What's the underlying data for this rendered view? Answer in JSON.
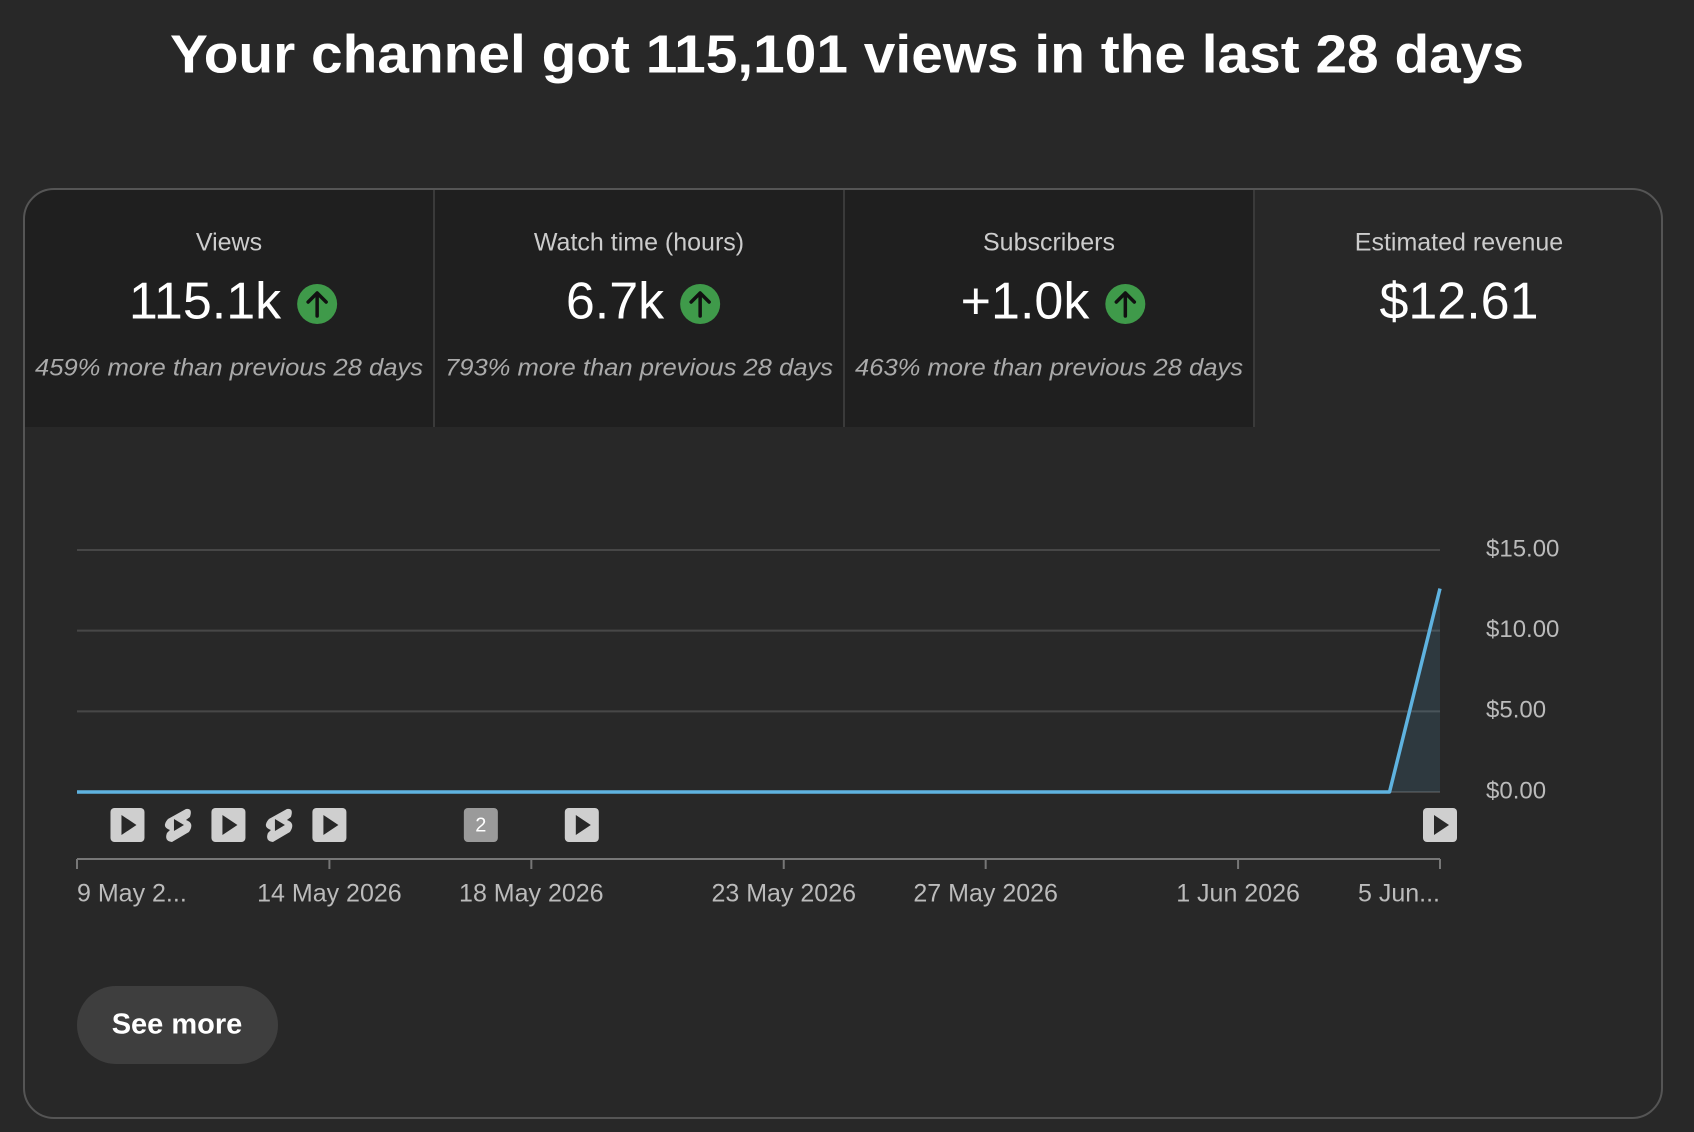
{
  "header": {
    "title": "Your channel got 115,101 views in the last 28 days"
  },
  "metrics": [
    {
      "label": "Views",
      "value": "115.1k",
      "change": "459% more than previous 28 days"
    },
    {
      "label": "Watch time (hours)",
      "value": "6.7k",
      "change": "793% more than previous 28 days"
    },
    {
      "label": "Subscribers",
      "value": "+1.0k",
      "change": "463% more than previous 28 days"
    },
    {
      "label": "Estimated revenue",
      "value": "$12.61"
    }
  ],
  "chart_data": {
    "type": "line",
    "categories": [
      "9 May 2...",
      null,
      null,
      null,
      null,
      "14 May 2026",
      null,
      null,
      null,
      "18 May 2026",
      null,
      null,
      null,
      null,
      "23 May 2026",
      null,
      null,
      null,
      "27 May 2026",
      null,
      null,
      null,
      null,
      "1 Jun 2026",
      null,
      null,
      null,
      "5 Jun..."
    ],
    "series": [
      {
        "color": "#5fb3e0",
        "values": [
          0,
          0,
          0,
          0,
          0,
          0,
          0,
          0,
          0,
          0,
          0,
          0,
          0,
          0,
          0,
          0,
          0,
          0,
          0,
          0,
          0,
          0,
          0,
          0,
          0,
          0,
          0,
          12.61
        ]
      }
    ],
    "ylim": [
      0,
      15
    ],
    "yticks": [
      {
        "value": 0,
        "label": "$0.00"
      },
      {
        "value": 5,
        "label": "$5.00"
      },
      {
        "value": 10,
        "label": "$10.00"
      },
      {
        "value": 15,
        "label": "$15.00"
      }
    ],
    "grid": true,
    "marker_badge": "2"
  },
  "button": {
    "label": "See more"
  }
}
